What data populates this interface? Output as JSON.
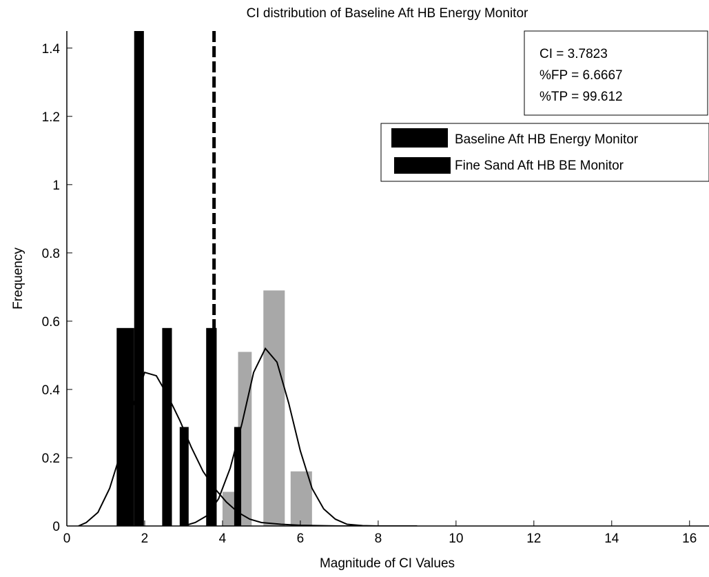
{
  "chart_data": {
    "type": "bar",
    "title": "CI distribution of Baseline Aft HB Energy Monitor",
    "xlabel": "Magnitude of CI Values",
    "ylabel": "Frequency",
    "xlim": [
      0,
      16.5
    ],
    "ylim": [
      0,
      1.45
    ],
    "x_ticks": [
      0,
      2,
      4,
      6,
      8,
      10,
      12,
      14,
      16
    ],
    "x_tick_labels": [
      "0",
      "2",
      "4",
      "6",
      "8",
      "10",
      "12",
      "14",
      "16"
    ],
    "y_ticks": [
      0,
      0.2,
      0.4,
      0.6,
      0.8,
      1,
      1.2,
      1.4
    ],
    "y_tick_labels": [
      "0",
      "0.2",
      "0.4",
      "0.6",
      "0.8",
      "1",
      "1.2",
      "1.4"
    ],
    "threshold": 3.7823,
    "stats": [
      "CI = 3.7823",
      "%FP = 6.6667",
      "%TP = 99.612"
    ],
    "legend_position": "upper-right",
    "series": [
      {
        "name": "Baseline Aft HB Energy Monitor",
        "color": "#000000",
        "bars": [
          {
            "x0": 1.28,
            "x1": 1.73,
            "y": 0.58
          },
          {
            "x0": 1.73,
            "x1": 1.98,
            "y": 1.46
          },
          {
            "x0": 2.45,
            "x1": 2.7,
            "y": 0.58
          },
          {
            "x0": 2.9,
            "x1": 3.13,
            "y": 0.29
          },
          {
            "x0": 3.58,
            "x1": 3.85,
            "y": 0.58
          },
          {
            "x0": 4.3,
            "x1": 4.48,
            "y": 0.29
          }
        ],
        "fit_curve": [
          [
            0.3,
            0.0
          ],
          [
            0.5,
            0.01
          ],
          [
            0.8,
            0.04
          ],
          [
            1.1,
            0.11
          ],
          [
            1.4,
            0.22
          ],
          [
            1.7,
            0.35
          ],
          [
            2.0,
            0.45
          ],
          [
            2.3,
            0.44
          ],
          [
            2.6,
            0.38
          ],
          [
            2.9,
            0.31
          ],
          [
            3.2,
            0.23
          ],
          [
            3.5,
            0.16
          ],
          [
            3.8,
            0.11
          ],
          [
            4.1,
            0.07
          ],
          [
            4.4,
            0.04
          ],
          [
            4.7,
            0.02
          ],
          [
            5.0,
            0.01
          ],
          [
            5.5,
            0.005
          ],
          [
            6.0,
            0.002
          ],
          [
            7.0,
            0.0
          ],
          [
            8.5,
            0.0
          ]
        ]
      },
      {
        "name": "Fine Sand Aft HB BE Monitor",
        "color": "#a8a8a8",
        "bars": [
          {
            "x0": 4.0,
            "x1": 4.35,
            "y": 0.1
          },
          {
            "x0": 4.4,
            "x1": 4.75,
            "y": 0.51
          },
          {
            "x0": 5.05,
            "x1": 5.6,
            "y": 0.69
          },
          {
            "x0": 5.75,
            "x1": 6.3,
            "y": 0.16
          }
        ],
        "fit_curve": [
          [
            3.0,
            0.0
          ],
          [
            3.3,
            0.01
          ],
          [
            3.6,
            0.03
          ],
          [
            3.9,
            0.08
          ],
          [
            4.2,
            0.17
          ],
          [
            4.5,
            0.3
          ],
          [
            4.8,
            0.45
          ],
          [
            5.1,
            0.52
          ],
          [
            5.4,
            0.48
          ],
          [
            5.7,
            0.36
          ],
          [
            6.0,
            0.22
          ],
          [
            6.3,
            0.11
          ],
          [
            6.6,
            0.05
          ],
          [
            6.9,
            0.02
          ],
          [
            7.2,
            0.005
          ],
          [
            7.6,
            0.001
          ],
          [
            8.0,
            0.0
          ],
          [
            9.0,
            0.0
          ]
        ]
      }
    ]
  }
}
